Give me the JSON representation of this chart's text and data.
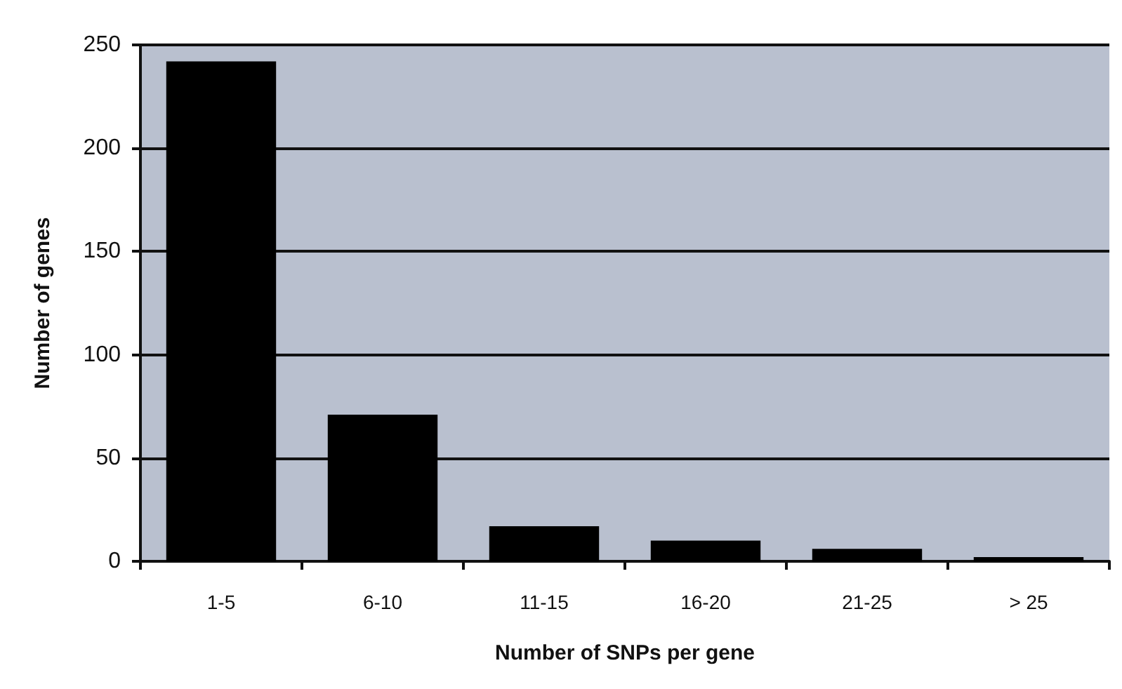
{
  "chart_data": {
    "type": "bar",
    "xlabel": "Number of SNPs per gene",
    "ylabel": "Number of genes",
    "categories": [
      "1-5",
      "6-10",
      "11-15",
      "16-20",
      "21-25",
      "> 25"
    ],
    "values": [
      242,
      71,
      17,
      10,
      6,
      2
    ],
    "color": "#000000",
    "ylim": [
      0,
      250
    ],
    "yticks": [
      0,
      50,
      100,
      150,
      200,
      250
    ],
    "grid": "y"
  }
}
